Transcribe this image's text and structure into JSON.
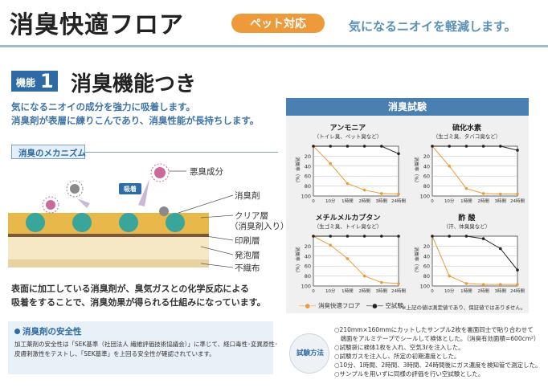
{
  "header": {
    "title": "消臭快適フロア",
    "badge": "ペット対応",
    "tagline": "気になるニオイを軽減します。"
  },
  "feature": {
    "label_word": "機能",
    "label_num": "1",
    "title": "消臭機能つき",
    "desc_1": "気になるニオイの成分を強力に吸着します。",
    "desc_2": "消臭剤が表層に練りこんであり、消臭性能が長持ちします。"
  },
  "mechanism": {
    "heading": "消臭のメカニズム",
    "odor_label": "悪臭成分",
    "adsorb_label": "吸着",
    "agent_label": "消臭剤",
    "clear_label_1": "クリア層",
    "clear_label_2": "（消臭剤入り）",
    "print_label": "印刷層",
    "foam_label": "発泡層",
    "nonwoven_label": "不織布",
    "summary_1": "表面に加工している消臭剤が、臭気ガスとの化学反応による",
    "summary_2": "吸着をすることで、消臭効果が得られる仕組みになっています。"
  },
  "safety": {
    "title": "消臭剤の安全性",
    "text_1": "加工薬剤の安全性は「SEK基準（社団法人 繊維評価技術協議会）」に準じて、経口毒性･変異原性･",
    "text_2": "皮膚刺激性をテストし、「SEK基準」を上回る安全性が確認されています。"
  },
  "test": {
    "title": "消臭試験",
    "ylabel": "消臭率（%）",
    "legend_product": "消臭快適フロア",
    "legend_blank": "空試験",
    "footnote": "※上記の値は測定値であり、保証値ではありません。",
    "method_title": "試験方法",
    "method_lines": [
      "○210mm×160mmにカットしたサンプル2枚を裏面同士で貼り合わせて",
      "　端面をアルミテープでシールして検体とした。（消臭有効面積=600cm²）",
      "○試験袋に検体1枚を入れ、空気3ℓを注入した。",
      "○試験ガスを注入し、所定の初期濃度とした。",
      "○10分、1時間、2時間、3時間、24時間後にガス濃度を検知管で測定した。",
      "○サンプルを用いずに同様の評価を行い空試験とした。"
    ]
  },
  "chart_data": [
    {
      "type": "line",
      "title": "アンモニア",
      "subtitle": "（トイレ臭、ペット臭など）",
      "categories": [
        "0",
        "10分",
        "1時間",
        "2時間",
        "3時間",
        "24時間"
      ],
      "ylim": [
        0,
        100
      ],
      "y_ticks": [
        "20",
        "40",
        "60",
        "80",
        "100"
      ],
      "series": [
        {
          "name": "消臭快適フロア",
          "values": [
            0,
            35,
            75,
            88,
            95,
            96
          ]
        },
        {
          "name": "空試験",
          "values": [
            0,
            0,
            0,
            0,
            0,
            15
          ]
        }
      ]
    },
    {
      "type": "line",
      "title": "硫化水素",
      "subtitle": "（生ゴミ臭、タバコ臭など）",
      "categories": [
        "0",
        "10分",
        "1時間",
        "2時間",
        "3時間",
        "24時間"
      ],
      "ylim": [
        0,
        100
      ],
      "y_ticks": [
        "20",
        "40",
        "60",
        "80",
        "100"
      ],
      "series": [
        {
          "name": "消臭快適フロア",
          "values": [
            0,
            40,
            85,
            95,
            96,
            96
          ]
        },
        {
          "name": "空試験",
          "values": [
            0,
            0,
            0,
            0,
            0,
            8
          ]
        }
      ]
    },
    {
      "type": "line",
      "title": "メチルメルカプタン",
      "subtitle": "（生ゴミ臭、トイレ臭など）",
      "categories": [
        "0",
        "10分",
        "1時間",
        "2時間",
        "3時間",
        "24時間"
      ],
      "ylim": [
        0,
        100
      ],
      "y_ticks": [
        "20",
        "40",
        "60",
        "80",
        "100"
      ],
      "series": [
        {
          "name": "消臭快適フロア",
          "values": [
            0,
            18,
            45,
            80,
            93,
            95
          ]
        },
        {
          "name": "空試験",
          "values": [
            0,
            0,
            0,
            0,
            0,
            0
          ]
        }
      ]
    },
    {
      "type": "line",
      "title": "酢 酸",
      "subtitle": "（汗、体臭臭など）",
      "categories": [
        "0",
        "10分",
        "1時間",
        "2時間",
        "3時間",
        "24時間"
      ],
      "ylim": [
        0,
        100
      ],
      "y_ticks": [
        "20",
        "40",
        "60",
        "80",
        "100"
      ],
      "series": [
        {
          "name": "消臭快適フロア",
          "values": [
            0,
            80,
            95,
            97,
            97,
            97
          ]
        },
        {
          "name": "空試験",
          "values": [
            0,
            0,
            0,
            5,
            25,
            68
          ]
        }
      ]
    }
  ],
  "colors": {
    "product": "#ef9a3a",
    "blank": "#222222",
    "accent": "#2e6aa3"
  }
}
